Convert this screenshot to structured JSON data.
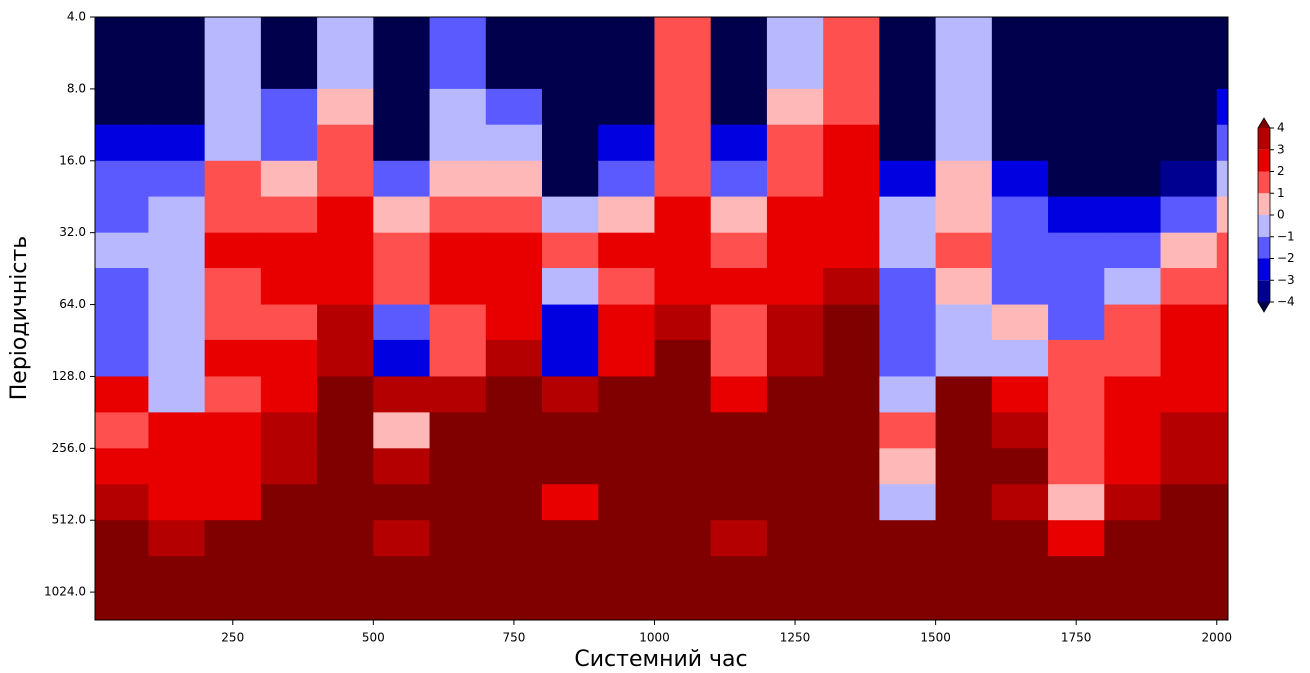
{
  "chart_data": {
    "type": "heatmap",
    "x_label": "Системний час",
    "y_label": "Періодичність",
    "xlim": [
      5,
      2020
    ],
    "ylim": [
      4,
      1340
    ],
    "yscale": "log2",
    "yinvert": true,
    "xticks": [
      250,
      500,
      750,
      1000,
      1250,
      1500,
      1750,
      2000
    ],
    "yticks": [
      {
        "value": 4,
        "label": "4.0"
      },
      {
        "value": 8,
        "label": "8.0"
      },
      {
        "value": 16,
        "label": "16.0"
      },
      {
        "value": 32,
        "label": "32.0"
      },
      {
        "value": 64,
        "label": "64.0"
      },
      {
        "value": 128,
        "label": "128.0"
      },
      {
        "value": 256,
        "label": "256.0"
      },
      {
        "value": 512,
        "label": "512.0"
      },
      {
        "value": 1024,
        "label": "1024.0"
      }
    ],
    "colorbar_ticks": [
      {
        "value": -4,
        "label": "−4"
      },
      {
        "value": -3,
        "label": "−3"
      },
      {
        "value": -2,
        "label": "−2"
      },
      {
        "value": -1,
        "label": "−1"
      },
      0,
      1,
      2,
      3,
      4
    ],
    "colors": [
      "#00004c",
      "#000090",
      "#0000e0",
      "#5a5aff",
      "#b8b8ff",
      "#ffb8b8",
      "#ff5050",
      "#e80000",
      "#b40000",
      "#800000"
    ],
    "x_edges": [
      5,
      100,
      200,
      300,
      400,
      500,
      600,
      700,
      800,
      900,
      1000,
      1100,
      1200,
      1300,
      1400,
      1500,
      1600,
      1700,
      1800,
      1900,
      2000,
      2020
    ],
    "y_edges": [
      4,
      5.66,
      8,
      11.3,
      16,
      22.6,
      32,
      45,
      64,
      90,
      128,
      181,
      256,
      362,
      512,
      724,
      1024,
      1340
    ],
    "z": [
      [
        -5,
        -5,
        -1,
        -5,
        -1,
        -5,
        -2,
        -5,
        -5,
        -5,
        1,
        -5,
        -1,
        1,
        -5,
        -1,
        -5,
        -5,
        -5,
        -5,
        -5
      ],
      [
        -5,
        -5,
        -1,
        -5,
        -1,
        -5,
        -2,
        -5,
        -5,
        -5,
        1,
        -5,
        -1,
        1,
        -5,
        -1,
        -5,
        -5,
        -5,
        -5,
        -5
      ],
      [
        -5,
        -5,
        -1,
        -2,
        0,
        -5,
        -1,
        -2,
        -5,
        -5,
        1,
        -5,
        0,
        1,
        -5,
        -1,
        -5,
        -5,
        -5,
        -5,
        -3
      ],
      [
        -3,
        -3,
        -1,
        -2,
        1,
        -5,
        -1,
        -1,
        -5,
        -3,
        1,
        -3,
        1,
        2,
        -5,
        -1,
        -5,
        -5,
        -5,
        -5,
        -2
      ],
      [
        -2,
        -2,
        1,
        0,
        1,
        -2,
        0,
        0,
        -5,
        -2,
        1,
        -2,
        1,
        2,
        -3,
        0,
        -3,
        -5,
        -5,
        -4,
        -1
      ],
      [
        -2,
        -1,
        1,
        1,
        2,
        0,
        1,
        1,
        -1,
        0,
        2,
        0,
        2,
        2,
        -1,
        0,
        -2,
        -3,
        -3,
        -2,
        0
      ],
      [
        -1,
        -1,
        2,
        2,
        2,
        1,
        2,
        2,
        1,
        2,
        2,
        1,
        2,
        2,
        -1,
        1,
        -2,
        -2,
        -2,
        0,
        1
      ],
      [
        -2,
        -1,
        1,
        2,
        2,
        1,
        2,
        2,
        -1,
        1,
        2,
        2,
        2,
        3,
        -2,
        0,
        -2,
        -2,
        -1,
        1,
        1
      ],
      [
        -2,
        -1,
        1,
        1,
        3,
        -2,
        1,
        2,
        -3,
        2,
        3,
        1,
        3,
        5,
        -2,
        -1,
        0,
        -2,
        1,
        2,
        2
      ],
      [
        -2,
        -1,
        2,
        2,
        3,
        -3,
        1,
        3,
        -3,
        2,
        4,
        1,
        3,
        5,
        -2,
        -1,
        -1,
        1,
        1,
        2,
        2
      ],
      [
        2,
        -1,
        1,
        2,
        5,
        3,
        3,
        5,
        3,
        4,
        5,
        2,
        4,
        5,
        -1,
        4,
        2,
        1,
        2,
        2,
        2
      ],
      [
        1,
        2,
        2,
        3,
        5,
        0,
        5,
        5,
        5,
        5,
        5,
        5,
        5,
        5,
        1,
        5,
        3,
        1,
        2,
        3,
        3
      ],
      [
        2,
        2,
        2,
        3,
        5,
        3,
        5,
        5,
        5,
        5,
        5,
        5,
        5,
        5,
        0,
        5,
        4,
        1,
        2,
        3,
        3
      ],
      [
        3,
        2,
        2,
        4,
        5,
        5,
        5,
        5,
        2,
        5,
        5,
        5,
        5,
        5,
        -1,
        5,
        3,
        0,
        3,
        4,
        4
      ],
      [
        5,
        3,
        4,
        5,
        5,
        3,
        5,
        5,
        5,
        5,
        5,
        3,
        5,
        5,
        5,
        5,
        4,
        2,
        4,
        5,
        5
      ],
      [
        5,
        5,
        5,
        5,
        5,
        5,
        5,
        5,
        5,
        5,
        5,
        5,
        5,
        5,
        5,
        5,
        5,
        4,
        5,
        5,
        5
      ],
      [
        5,
        5,
        5,
        5,
        5,
        5,
        5,
        5,
        5,
        5,
        5,
        5,
        5,
        5,
        5,
        5,
        5,
        5,
        5,
        5,
        5
      ]
    ]
  }
}
